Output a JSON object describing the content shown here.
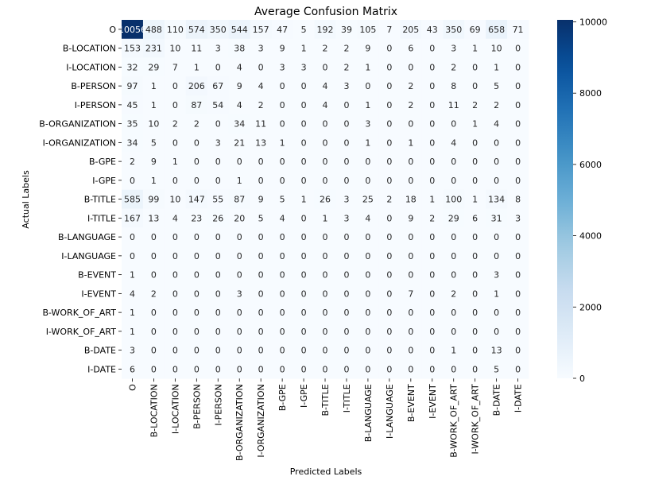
{
  "chart_data": {
    "type": "heatmap",
    "title": "Average Confusion Matrix",
    "xlabel": "Predicted Labels",
    "ylabel": "Actual Labels",
    "labels": [
      "O",
      "B-LOCATION",
      "I-LOCATION",
      "B-PERSON",
      "I-PERSON",
      "B-ORGANIZATION",
      "I-ORGANIZATION",
      "B-GPE",
      "I-GPE",
      "B-TITLE",
      "I-TITLE",
      "B-LANGUAGE",
      "I-LANGUAGE",
      "B-EVENT",
      "I-EVENT",
      "B-WORK_OF_ART",
      "I-WORK_OF_ART",
      "B-DATE",
      "I-DATE"
    ],
    "values": [
      [
        10056,
        488,
        110,
        574,
        350,
        544,
        157,
        47,
        5,
        192,
        39,
        105,
        7,
        205,
        43,
        350,
        69,
        658,
        71
      ],
      [
        153,
        231,
        10,
        11,
        3,
        38,
        3,
        9,
        1,
        2,
        2,
        9,
        0,
        6,
        0,
        3,
        1,
        10,
        0
      ],
      [
        32,
        29,
        7,
        1,
        0,
        4,
        0,
        3,
        3,
        0,
        2,
        1,
        0,
        0,
        0,
        2,
        0,
        1,
        0
      ],
      [
        97,
        1,
        0,
        206,
        67,
        9,
        4,
        0,
        0,
        4,
        3,
        0,
        0,
        2,
        0,
        8,
        0,
        5,
        0
      ],
      [
        45,
        1,
        0,
        87,
        54,
        4,
        2,
        0,
        0,
        4,
        0,
        1,
        0,
        2,
        0,
        11,
        2,
        2,
        0
      ],
      [
        35,
        10,
        2,
        2,
        0,
        34,
        11,
        0,
        0,
        0,
        0,
        3,
        0,
        0,
        0,
        0,
        1,
        4,
        0
      ],
      [
        34,
        5,
        0,
        0,
        3,
        21,
        13,
        1,
        0,
        0,
        0,
        1,
        0,
        1,
        0,
        4,
        0,
        0,
        0
      ],
      [
        2,
        9,
        1,
        0,
        0,
        0,
        0,
        0,
        0,
        0,
        0,
        0,
        0,
        0,
        0,
        0,
        0,
        0,
        0
      ],
      [
        0,
        1,
        0,
        0,
        0,
        1,
        0,
        0,
        0,
        0,
        0,
        0,
        0,
        0,
        0,
        0,
        0,
        0,
        0
      ],
      [
        585,
        99,
        10,
        147,
        55,
        87,
        9,
        5,
        1,
        26,
        3,
        25,
        2,
        18,
        1,
        100,
        1,
        134,
        8
      ],
      [
        167,
        13,
        4,
        23,
        26,
        20,
        5,
        4,
        0,
        1,
        3,
        4,
        0,
        9,
        2,
        29,
        6,
        31,
        3
      ],
      [
        0,
        0,
        0,
        0,
        0,
        0,
        0,
        0,
        0,
        0,
        0,
        0,
        0,
        0,
        0,
        0,
        0,
        0,
        0
      ],
      [
        0,
        0,
        0,
        0,
        0,
        0,
        0,
        0,
        0,
        0,
        0,
        0,
        0,
        0,
        0,
        0,
        0,
        0,
        0
      ],
      [
        1,
        0,
        0,
        0,
        0,
        0,
        0,
        0,
        0,
        0,
        0,
        0,
        0,
        0,
        0,
        0,
        0,
        3,
        0
      ],
      [
        4,
        2,
        0,
        0,
        0,
        3,
        0,
        0,
        0,
        0,
        0,
        0,
        0,
        7,
        0,
        2,
        0,
        1,
        0
      ],
      [
        1,
        0,
        0,
        0,
        0,
        0,
        0,
        0,
        0,
        0,
        0,
        0,
        0,
        0,
        0,
        0,
        0,
        0,
        0
      ],
      [
        1,
        0,
        0,
        0,
        0,
        0,
        0,
        0,
        0,
        0,
        0,
        0,
        0,
        0,
        0,
        0,
        0,
        0,
        0
      ],
      [
        3,
        0,
        0,
        0,
        0,
        0,
        0,
        0,
        0,
        0,
        0,
        0,
        0,
        0,
        0,
        1,
        0,
        13,
        0
      ],
      [
        6,
        0,
        0,
        0,
        0,
        0,
        0,
        0,
        0,
        0,
        0,
        0,
        0,
        0,
        0,
        0,
        0,
        5,
        0
      ]
    ],
    "colorbar": {
      "min": 0,
      "max": 10056,
      "ticks": [
        0,
        2000,
        4000,
        6000,
        8000,
        10000
      ]
    },
    "colormap": "Blues",
    "grid": false
  }
}
